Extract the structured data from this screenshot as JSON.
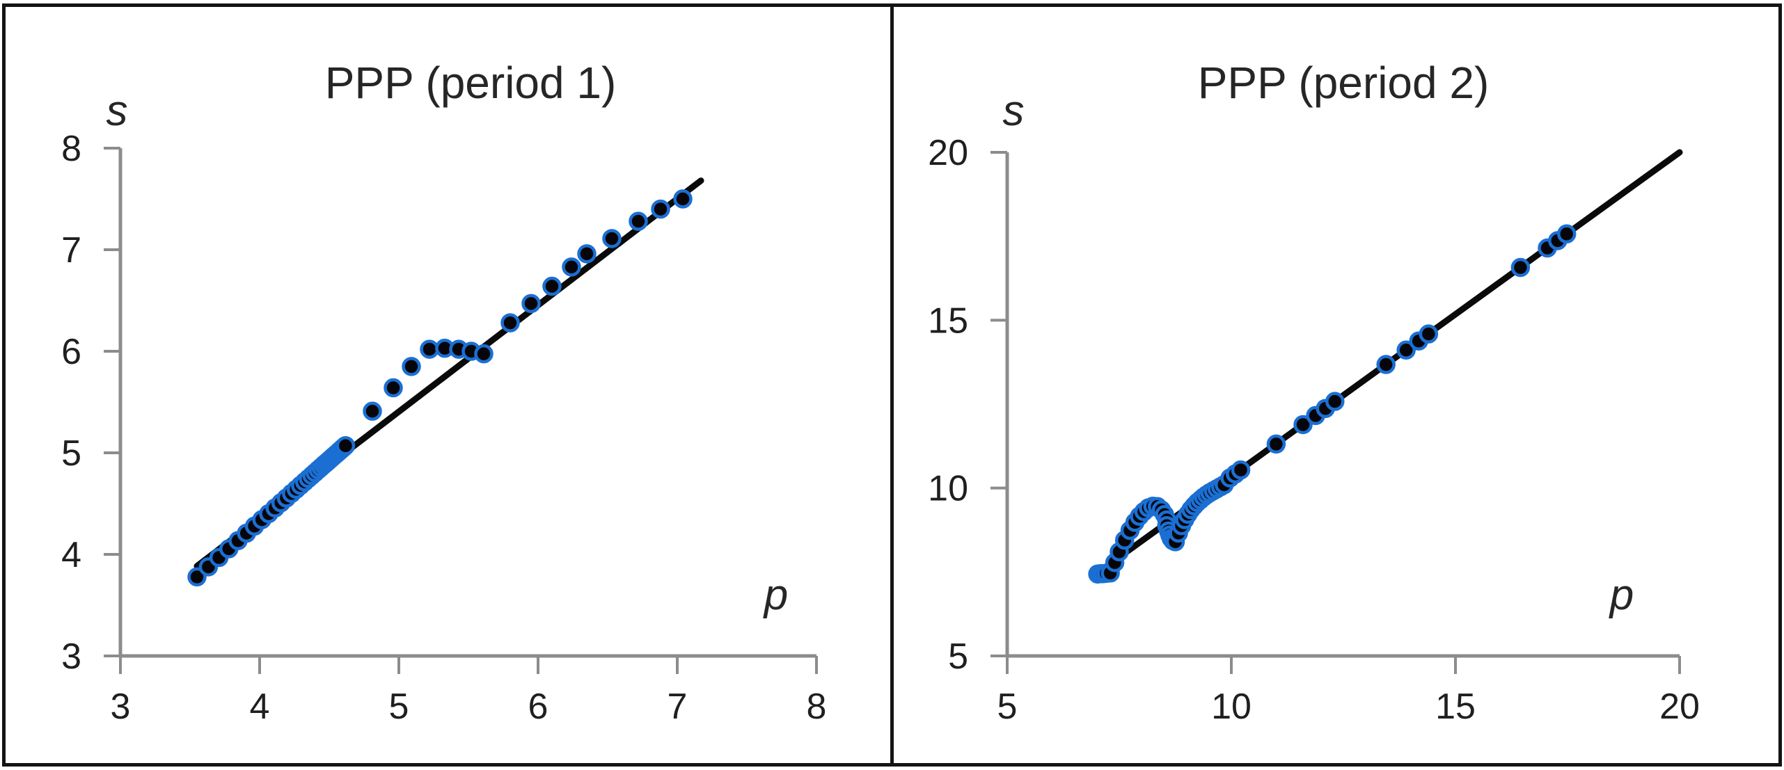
{
  "figure": {
    "border_color": "#141414",
    "background": "#ffffff"
  },
  "styles": {
    "marker_fill": "#06060a",
    "marker_stroke": "#1b6fd3",
    "trend_line_color": "#0a0a0a",
    "axis_color": "#8c8c8c",
    "text_color": "#1f1f1f"
  },
  "chart_data": [
    {
      "type": "scatter",
      "title": "PPP (period 1)",
      "xlabel": "p",
      "ylabel": "s",
      "xlim": [
        3,
        8
      ],
      "ylim": [
        3,
        8
      ],
      "xticks": [
        3,
        4,
        5,
        6,
        7,
        8
      ],
      "yticks": [
        3,
        4,
        5,
        6,
        7,
        8
      ],
      "grid": false,
      "legend": "none",
      "series": [
        {
          "name": "observations",
          "type": "scatter",
          "points": [
            [
              3.55,
              3.778
            ],
            [
              3.632,
              3.877
            ],
            [
              3.708,
              3.969
            ],
            [
              3.779,
              4.055
            ],
            [
              3.845,
              4.135
            ],
            [
              3.906,
              4.209
            ],
            [
              3.963,
              4.278
            ],
            [
              4.016,
              4.342
            ],
            [
              4.065,
              4.401
            ],
            [
              4.111,
              4.457
            ],
            [
              4.153,
              4.508
            ],
            [
              4.192,
              4.555
            ],
            [
              4.229,
              4.6
            ],
            [
              4.263,
              4.641
            ],
            [
              4.294,
              4.679
            ],
            [
              4.323,
              4.714
            ],
            [
              4.35,
              4.747
            ],
            [
              4.375,
              4.777
            ],
            [
              4.398,
              4.805
            ],
            [
              4.42,
              4.832
            ],
            [
              4.44,
              4.856
            ],
            [
              4.458,
              4.878
            ],
            [
              4.475,
              4.898
            ],
            [
              4.491,
              4.917
            ],
            [
              4.505,
              4.934
            ],
            [
              4.519,
              4.951
            ],
            [
              4.531,
              4.966
            ],
            [
              4.543,
              4.98
            ],
            [
              4.553,
              4.992
            ],
            [
              4.563,
              5.004
            ],
            [
              4.572,
              5.015
            ],
            [
              4.58,
              5.025
            ],
            [
              4.588,
              5.035
            ],
            [
              4.595,
              5.043
            ],
            [
              4.601,
              5.05
            ],
            [
              4.607,
              5.058
            ],
            [
              4.612,
              5.064
            ],
            [
              4.617,
              5.07
            ],
            [
              4.81,
              5.41
            ],
            [
              4.96,
              5.64
            ],
            [
              5.09,
              5.85
            ],
            [
              5.22,
              6.02
            ],
            [
              5.33,
              6.03
            ],
            [
              5.43,
              6.02
            ],
            [
              5.52,
              6.0
            ],
            [
              5.61,
              5.975
            ],
            [
              5.8,
              6.28
            ],
            [
              5.95,
              6.47
            ],
            [
              6.1,
              6.64
            ],
            [
              6.24,
              6.83
            ],
            [
              6.35,
              6.96
            ],
            [
              6.53,
              7.11
            ],
            [
              6.72,
              7.28
            ],
            [
              6.88,
              7.4
            ],
            [
              7.04,
              7.5
            ]
          ]
        },
        {
          "name": "trend-line",
          "type": "line",
          "points": [
            [
              3.55,
              3.885
            ],
            [
              7.17,
              7.68
            ]
          ]
        }
      ]
    },
    {
      "type": "scatter",
      "title": "PPP (period 2)",
      "xlabel": "p",
      "ylabel": "s",
      "xlim": [
        5,
        20
      ],
      "ylim": [
        5,
        20
      ],
      "xticks": [
        5,
        10,
        15,
        20
      ],
      "yticks": [
        5,
        10,
        15,
        20
      ],
      "grid": false,
      "legend": "none",
      "series": [
        {
          "name": "observations",
          "type": "scatter",
          "points": [
            [
              7.02,
              7.44
            ],
            [
              7.08,
              7.45
            ],
            [
              7.14,
              7.45
            ],
            [
              7.21,
              7.46
            ],
            [
              7.3,
              7.47
            ],
            [
              7.4,
              7.78
            ],
            [
              7.5,
              8.1
            ],
            [
              7.62,
              8.45
            ],
            [
              7.74,
              8.74
            ],
            [
              7.85,
              8.98
            ],
            [
              7.95,
              9.16
            ],
            [
              8.05,
              9.3
            ],
            [
              8.15,
              9.41
            ],
            [
              8.25,
              9.46
            ],
            [
              8.35,
              9.45
            ],
            [
              8.44,
              9.35
            ],
            [
              8.51,
              9.21
            ],
            [
              8.56,
              9.05
            ],
            [
              8.56,
              8.88
            ],
            [
              8.6,
              8.72
            ],
            [
              8.63,
              8.6
            ],
            [
              8.66,
              8.5
            ],
            [
              8.7,
              8.43
            ],
            [
              8.75,
              8.4
            ],
            [
              8.82,
              8.66
            ],
            [
              8.89,
              8.88
            ],
            [
              8.96,
              9.06
            ],
            [
              9.03,
              9.22
            ],
            [
              9.1,
              9.36
            ],
            [
              9.17,
              9.47
            ],
            [
              9.24,
              9.57
            ],
            [
              9.31,
              9.65
            ],
            [
              9.38,
              9.73
            ],
            [
              9.45,
              9.8
            ],
            [
              9.52,
              9.86
            ],
            [
              9.6,
              9.92
            ],
            [
              9.68,
              9.98
            ],
            [
              9.76,
              10.04
            ],
            [
              9.84,
              10.1
            ],
            [
              9.97,
              10.3
            ],
            [
              10.09,
              10.42
            ],
            [
              10.21,
              10.54
            ],
            [
              11.0,
              11.31
            ],
            [
              11.6,
              11.89
            ],
            [
              11.88,
              12.16
            ],
            [
              12.1,
              12.37
            ],
            [
              12.31,
              12.58
            ],
            [
              13.45,
              13.68
            ],
            [
              13.9,
              14.11
            ],
            [
              14.18,
              14.38
            ],
            [
              14.4,
              14.59
            ],
            [
              16.45,
              16.57
            ],
            [
              17.05,
              17.15
            ],
            [
              17.28,
              17.37
            ],
            [
              17.48,
              17.57
            ]
          ]
        },
        {
          "name": "trend-line",
          "type": "line",
          "points": [
            [
              6.98,
              7.44
            ],
            [
              20.0,
              20.0
            ]
          ]
        }
      ]
    }
  ]
}
